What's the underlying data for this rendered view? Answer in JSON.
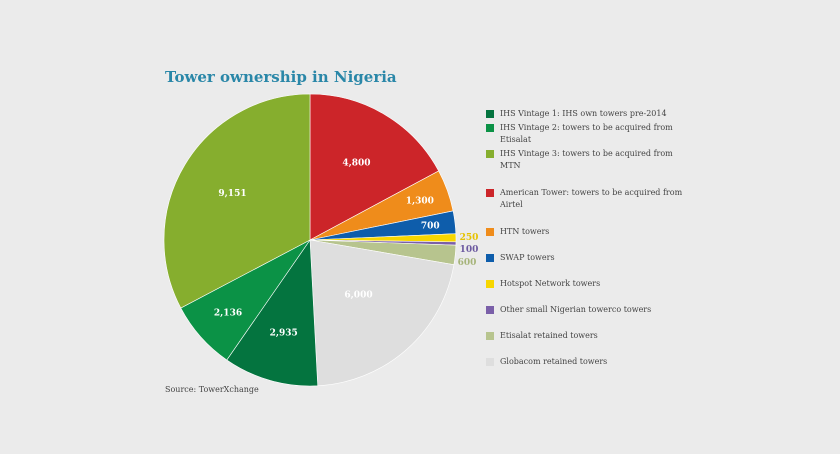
{
  "title": "Tower ownership in Nigeria",
  "source": "Source: TowerXchange",
  "chart_data": {
    "type": "pie",
    "title": "Tower ownership in Nigeria",
    "start_angle_deg": 0,
    "direction": "clockwise",
    "slices": [
      {
        "label": "American Tower: towers to be acquired from Airtel",
        "value": 4800,
        "value_label": "4,800",
        "color": "#cc2529"
      },
      {
        "label": "HTN towers",
        "value": 1300,
        "value_label": "1,300",
        "color": "#ef8c1b"
      },
      {
        "label": "SWAP towers",
        "value": 700,
        "value_label": "700",
        "color": "#0e5dab"
      },
      {
        "label": "Hotspot Network towers",
        "value": 250,
        "value_label": "250",
        "color": "#f7d600"
      },
      {
        "label": "Other small Nigerian towerco towers",
        "value": 100,
        "value_label": "100",
        "color": "#7a5fa8"
      },
      {
        "label": "Etisalat retained towers",
        "value": 600,
        "value_label": "600",
        "color": "#b7c48e"
      },
      {
        "label": "Globacom retained towers",
        "value": 6000,
        "value_label": "6,000",
        "color": "#dedede"
      },
      {
        "label": "IHS Vintage 1: IHS own towers pre-2014",
        "value": 2935,
        "value_label": "2,935",
        "color": "#04743f"
      },
      {
        "label": "IHS Vintage 2: towers to be acquired from Etisalat",
        "value": 2136,
        "value_label": "2,136",
        "color": "#0b9246"
      },
      {
        "label": "IHS Vintage 3: towers to be acquired from MTN",
        "value": 9151,
        "value_label": "9,151",
        "color": "#86ae2e"
      }
    ]
  },
  "legend": [
    {
      "label": "IHS Vintage 1: IHS own towers pre-2014",
      "color": "#04743f"
    },
    {
      "label": "IHS Vintage 2: towers to be acquired from Etisalat",
      "color": "#0b9246"
    },
    {
      "label": "IHS Vintage 3: towers to be acquired from MTN",
      "color": "#86ae2e"
    },
    {
      "label": "American Tower: towers to be acquired from Airtel",
      "color": "#cc2529"
    },
    {
      "label": "HTN towers",
      "color": "#ef8c1b"
    },
    {
      "label": "SWAP towers",
      "color": "#0e5dab"
    },
    {
      "label": "Hotspot Network towers",
      "color": "#f7d600"
    },
    {
      "label": "Other small Nigerian towerco towers",
      "color": "#7a5fa8"
    },
    {
      "label": "Etisalat retained towers",
      "color": "#b7c48e"
    },
    {
      "label": "Globacom retained towers",
      "color": "#dedede"
    }
  ]
}
